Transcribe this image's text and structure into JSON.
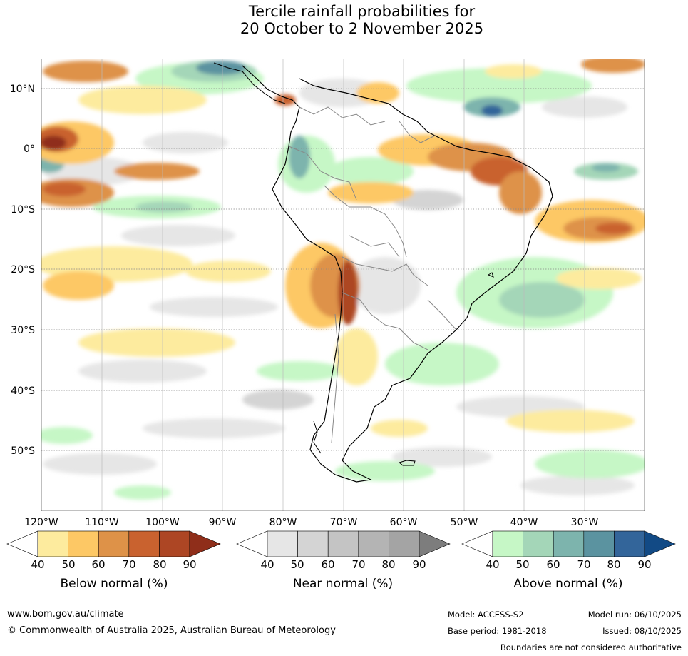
{
  "title": {
    "line1": "Tercile rainfall probabilities for",
    "line2": "20 October to 2 November 2025"
  },
  "map": {
    "lat_labels": [
      "10°N",
      "0°",
      "10°S",
      "20°S",
      "30°S",
      "40°S",
      "50°S"
    ],
    "lon_labels": [
      "120°W",
      "110°W",
      "100°W",
      "90°W",
      "80°W",
      "70°W",
      "60°W",
      "50°W",
      "40°W",
      "30°W"
    ]
  },
  "colorbars": {
    "below": {
      "label": "Below normal (%)",
      "ticks": [
        "40",
        "50",
        "60",
        "70",
        "80",
        "90"
      ],
      "colors": [
        "#ffffff",
        "#fdeb9e",
        "#fdc865",
        "#de9248",
        "#c9622f",
        "#ad4624",
        "#8f2e1a"
      ]
    },
    "near": {
      "label": "Near normal (%)",
      "ticks": [
        "40",
        "50",
        "60",
        "70",
        "80",
        "90"
      ],
      "colors": [
        "#ffffff",
        "#e6e6e6",
        "#d4d4d4",
        "#c4c4c4",
        "#b4b4b4",
        "#a4a4a4",
        "#7d7d7d"
      ]
    },
    "above": {
      "label": "Above normal (%)",
      "ticks": [
        "40",
        "50",
        "60",
        "70",
        "80",
        "90"
      ],
      "colors": [
        "#ffffff",
        "#c6f7c6",
        "#a4d6b8",
        "#7db4ad",
        "#5b93a0",
        "#33659a",
        "#124a85"
      ]
    }
  },
  "footer": {
    "website": "www.bom.gov.au/climate",
    "copyright": "© Commonwealth of Australia 2025, Australian Bureau of Meteorology",
    "model": "Model: ACCESS-S2",
    "base_period": "Base period: 1981-2018",
    "model_run": "Model run: 06/10/2025",
    "issued": "Issued: 08/10/2025",
    "disclaimer": "Boundaries are not considered authoritative"
  }
}
